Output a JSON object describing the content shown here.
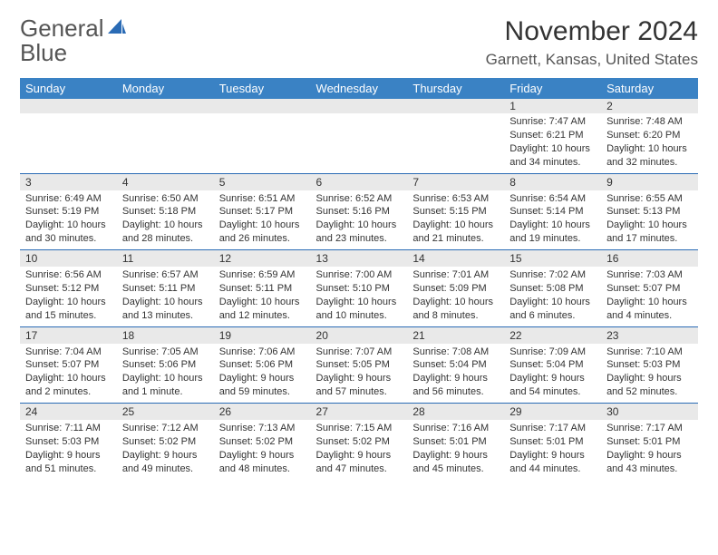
{
  "logo": {
    "text_general": "General",
    "text_blue": "Blue"
  },
  "title": "November 2024",
  "location": "Garnett, Kansas, United States",
  "day_headers": [
    "Sunday",
    "Monday",
    "Tuesday",
    "Wednesday",
    "Thursday",
    "Friday",
    "Saturday"
  ],
  "weeks": [
    [
      {
        "num": "",
        "sunrise": "",
        "sunset": "",
        "daylight": ""
      },
      {
        "num": "",
        "sunrise": "",
        "sunset": "",
        "daylight": ""
      },
      {
        "num": "",
        "sunrise": "",
        "sunset": "",
        "daylight": ""
      },
      {
        "num": "",
        "sunrise": "",
        "sunset": "",
        "daylight": ""
      },
      {
        "num": "",
        "sunrise": "",
        "sunset": "",
        "daylight": ""
      },
      {
        "num": "1",
        "sunrise": "Sunrise: 7:47 AM",
        "sunset": "Sunset: 6:21 PM",
        "daylight": "Daylight: 10 hours and 34 minutes."
      },
      {
        "num": "2",
        "sunrise": "Sunrise: 7:48 AM",
        "sunset": "Sunset: 6:20 PM",
        "daylight": "Daylight: 10 hours and 32 minutes."
      }
    ],
    [
      {
        "num": "3",
        "sunrise": "Sunrise: 6:49 AM",
        "sunset": "Sunset: 5:19 PM",
        "daylight": "Daylight: 10 hours and 30 minutes."
      },
      {
        "num": "4",
        "sunrise": "Sunrise: 6:50 AM",
        "sunset": "Sunset: 5:18 PM",
        "daylight": "Daylight: 10 hours and 28 minutes."
      },
      {
        "num": "5",
        "sunrise": "Sunrise: 6:51 AM",
        "sunset": "Sunset: 5:17 PM",
        "daylight": "Daylight: 10 hours and 26 minutes."
      },
      {
        "num": "6",
        "sunrise": "Sunrise: 6:52 AM",
        "sunset": "Sunset: 5:16 PM",
        "daylight": "Daylight: 10 hours and 23 minutes."
      },
      {
        "num": "7",
        "sunrise": "Sunrise: 6:53 AM",
        "sunset": "Sunset: 5:15 PM",
        "daylight": "Daylight: 10 hours and 21 minutes."
      },
      {
        "num": "8",
        "sunrise": "Sunrise: 6:54 AM",
        "sunset": "Sunset: 5:14 PM",
        "daylight": "Daylight: 10 hours and 19 minutes."
      },
      {
        "num": "9",
        "sunrise": "Sunrise: 6:55 AM",
        "sunset": "Sunset: 5:13 PM",
        "daylight": "Daylight: 10 hours and 17 minutes."
      }
    ],
    [
      {
        "num": "10",
        "sunrise": "Sunrise: 6:56 AM",
        "sunset": "Sunset: 5:12 PM",
        "daylight": "Daylight: 10 hours and 15 minutes."
      },
      {
        "num": "11",
        "sunrise": "Sunrise: 6:57 AM",
        "sunset": "Sunset: 5:11 PM",
        "daylight": "Daylight: 10 hours and 13 minutes."
      },
      {
        "num": "12",
        "sunrise": "Sunrise: 6:59 AM",
        "sunset": "Sunset: 5:11 PM",
        "daylight": "Daylight: 10 hours and 12 minutes."
      },
      {
        "num": "13",
        "sunrise": "Sunrise: 7:00 AM",
        "sunset": "Sunset: 5:10 PM",
        "daylight": "Daylight: 10 hours and 10 minutes."
      },
      {
        "num": "14",
        "sunrise": "Sunrise: 7:01 AM",
        "sunset": "Sunset: 5:09 PM",
        "daylight": "Daylight: 10 hours and 8 minutes."
      },
      {
        "num": "15",
        "sunrise": "Sunrise: 7:02 AM",
        "sunset": "Sunset: 5:08 PM",
        "daylight": "Daylight: 10 hours and 6 minutes."
      },
      {
        "num": "16",
        "sunrise": "Sunrise: 7:03 AM",
        "sunset": "Sunset: 5:07 PM",
        "daylight": "Daylight: 10 hours and 4 minutes."
      }
    ],
    [
      {
        "num": "17",
        "sunrise": "Sunrise: 7:04 AM",
        "sunset": "Sunset: 5:07 PM",
        "daylight": "Daylight: 10 hours and 2 minutes."
      },
      {
        "num": "18",
        "sunrise": "Sunrise: 7:05 AM",
        "sunset": "Sunset: 5:06 PM",
        "daylight": "Daylight: 10 hours and 1 minute."
      },
      {
        "num": "19",
        "sunrise": "Sunrise: 7:06 AM",
        "sunset": "Sunset: 5:06 PM",
        "daylight": "Daylight: 9 hours and 59 minutes."
      },
      {
        "num": "20",
        "sunrise": "Sunrise: 7:07 AM",
        "sunset": "Sunset: 5:05 PM",
        "daylight": "Daylight: 9 hours and 57 minutes."
      },
      {
        "num": "21",
        "sunrise": "Sunrise: 7:08 AM",
        "sunset": "Sunset: 5:04 PM",
        "daylight": "Daylight: 9 hours and 56 minutes."
      },
      {
        "num": "22",
        "sunrise": "Sunrise: 7:09 AM",
        "sunset": "Sunset: 5:04 PM",
        "daylight": "Daylight: 9 hours and 54 minutes."
      },
      {
        "num": "23",
        "sunrise": "Sunrise: 7:10 AM",
        "sunset": "Sunset: 5:03 PM",
        "daylight": "Daylight: 9 hours and 52 minutes."
      }
    ],
    [
      {
        "num": "24",
        "sunrise": "Sunrise: 7:11 AM",
        "sunset": "Sunset: 5:03 PM",
        "daylight": "Daylight: 9 hours and 51 minutes."
      },
      {
        "num": "25",
        "sunrise": "Sunrise: 7:12 AM",
        "sunset": "Sunset: 5:02 PM",
        "daylight": "Daylight: 9 hours and 49 minutes."
      },
      {
        "num": "26",
        "sunrise": "Sunrise: 7:13 AM",
        "sunset": "Sunset: 5:02 PM",
        "daylight": "Daylight: 9 hours and 48 minutes."
      },
      {
        "num": "27",
        "sunrise": "Sunrise: 7:15 AM",
        "sunset": "Sunset: 5:02 PM",
        "daylight": "Daylight: 9 hours and 47 minutes."
      },
      {
        "num": "28",
        "sunrise": "Sunrise: 7:16 AM",
        "sunset": "Sunset: 5:01 PM",
        "daylight": "Daylight: 9 hours and 45 minutes."
      },
      {
        "num": "29",
        "sunrise": "Sunrise: 7:17 AM",
        "sunset": "Sunset: 5:01 PM",
        "daylight": "Daylight: 9 hours and 44 minutes."
      },
      {
        "num": "30",
        "sunrise": "Sunrise: 7:17 AM",
        "sunset": "Sunset: 5:01 PM",
        "daylight": "Daylight: 9 hours and 43 minutes."
      }
    ]
  ],
  "colors": {
    "header_bg": "#3a82c4",
    "daynum_bg": "#e9e9e9",
    "week_divider": "#2a6bb5",
    "logo_gray": "#555555",
    "logo_blue": "#2a6bb5"
  }
}
